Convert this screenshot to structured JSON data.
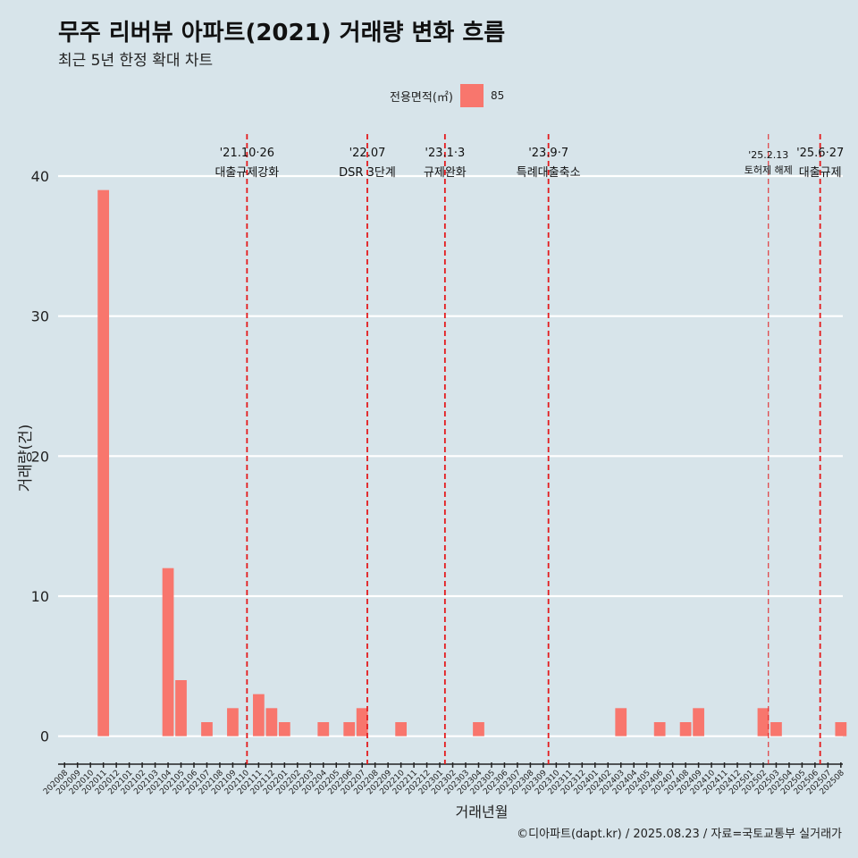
{
  "header": {
    "title": "무주 리버뷰 아파트(2021) 거래량 변화 흐름",
    "subtitle": "최근 5년 한정 확대 차트"
  },
  "legend": {
    "title": "전용면적(㎡)",
    "label": "85",
    "color": "#f8766d"
  },
  "caption": "©디아파트(dapt.kr) / 2025.08.23 / 자료=국토교통부 실거래가",
  "chart_data": {
    "type": "bar",
    "title": "무주 리버뷰 아파트(2021) 거래량 변화 흐름",
    "subtitle": "최근 5년 한정 확대 차트",
    "xlabel": "거래년월",
    "ylabel": "거래량(건)",
    "ylim": [
      -2.0,
      43
    ],
    "yticks": [
      0,
      10,
      20,
      30,
      40
    ],
    "grid": "horizontal",
    "legend_position": "top-center",
    "categories": [
      "202008",
      "202009",
      "202010",
      "202011",
      "202012",
      "202101",
      "202102",
      "202103",
      "202104",
      "202105",
      "202106",
      "202107",
      "202108",
      "202109",
      "202110",
      "202111",
      "202112",
      "202201",
      "202202",
      "202203",
      "202204",
      "202205",
      "202206",
      "202207",
      "202208",
      "202209",
      "202210",
      "202211",
      "202212",
      "202301",
      "202302",
      "202303",
      "202304",
      "202305",
      "202306",
      "202307",
      "202308",
      "202309",
      "202310",
      "202311",
      "202312",
      "202401",
      "202402",
      "202403",
      "202404",
      "202405",
      "202406",
      "202407",
      "202408",
      "202409",
      "202410",
      "202411",
      "202412",
      "202501",
      "202502",
      "202503",
      "202504",
      "202505",
      "202506",
      "202507",
      "202508"
    ],
    "series": [
      {
        "name": "85",
        "color": "#f8766d",
        "values": [
          0,
          0,
          0,
          39,
          0,
          0,
          0,
          0,
          12,
          4,
          0,
          1,
          0,
          2,
          0,
          3,
          2,
          1,
          0,
          0,
          1,
          0,
          1,
          2,
          0,
          0,
          1,
          0,
          0,
          0,
          0,
          0,
          1,
          0,
          0,
          0,
          0,
          0,
          0,
          0,
          0,
          0,
          0,
          2,
          0,
          0,
          1,
          0,
          1,
          2,
          0,
          0,
          0,
          0,
          2,
          1,
          0,
          0,
          0,
          0,
          1
        ]
      }
    ],
    "annotations": [
      {
        "x": 14.1,
        "date": "'21.10·26",
        "label": "대출규제강화",
        "small": false
      },
      {
        "x": 23.4,
        "date": "'22.07",
        "label": "DSR 3단계",
        "small": false
      },
      {
        "x": 29.4,
        "date": "'23.1·3",
        "label": "규제완화",
        "small": false
      },
      {
        "x": 37.4,
        "date": "'23.9·7",
        "label": "특례대출축소",
        "small": false
      },
      {
        "x": 54.4,
        "date": "'25.2.13",
        "label": "토허제 해제",
        "small": true
      },
      {
        "x": 58.4,
        "date": "'25.6·27",
        "label": "대출규제",
        "small": false
      }
    ]
  }
}
